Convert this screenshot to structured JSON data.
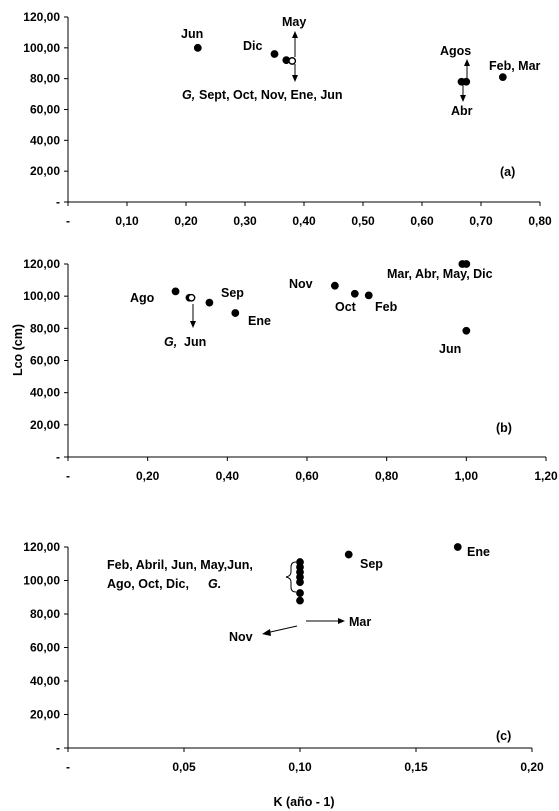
{
  "y_title": "Lco (cm)",
  "x_title": "K (año - 1)",
  "chart_data": [
    {
      "type": "scatter",
      "panel_label": "(a)",
      "xlim": [
        0,
        0.8
      ],
      "ylim": [
        0,
        120
      ],
      "x_ticks": [
        0.0,
        0.1,
        0.2,
        0.3,
        0.4,
        0.5,
        0.6,
        0.7,
        0.8
      ],
      "x_tick_labels": [
        "-",
        "0,10",
        "0,20",
        "0,30",
        "0,40",
        "0,50",
        "0,60",
        "0,70",
        "0,80"
      ],
      "y_ticks": [
        0,
        20,
        40,
        60,
        80,
        100,
        120
      ],
      "y_tick_labels": [
        "-",
        "20,00",
        "40,00",
        "60,00",
        "80,00",
        "100,00",
        "120,00"
      ],
      "grid": false,
      "points": [
        {
          "x": 0.22,
          "y": 100.0
        },
        {
          "x": 0.35,
          "y": 96.0
        },
        {
          "x": 0.37,
          "y": 92.0
        },
        {
          "x": 0.38,
          "y": 91.5,
          "hollow": true
        },
        {
          "x": 0.667,
          "y": 78.0
        },
        {
          "x": 0.675,
          "y": 78.0
        },
        {
          "x": 0.737,
          "y": 81.0
        }
      ],
      "annotations": [
        "Jun",
        "Dic",
        "May",
        "G,",
        "Sept, Oct, Nov, Ene, Jun",
        "Agos",
        "Abr",
        "Feb, Mar"
      ]
    },
    {
      "type": "scatter",
      "panel_label": "(b)",
      "xlim": [
        0,
        1.2
      ],
      "ylim": [
        0,
        120
      ],
      "x_ticks": [
        0.0,
        0.2,
        0.4,
        0.6,
        0.8,
        1.0,
        1.2
      ],
      "x_tick_labels": [
        "-",
        "0,20",
        "0,40",
        "0,60",
        "0,80",
        "1,00",
        "1,20"
      ],
      "y_ticks": [
        0,
        20,
        40,
        60,
        80,
        100,
        120
      ],
      "y_tick_labels": [
        "-",
        "20,00",
        "40,00",
        "60,00",
        "80,00",
        "100,00",
        "120,00"
      ],
      "grid": false,
      "points": [
        {
          "x": 0.27,
          "y": 103.0
        },
        {
          "x": 0.305,
          "y": 99.0
        },
        {
          "x": 0.31,
          "y": 99.0,
          "hollow": true
        },
        {
          "x": 0.355,
          "y": 96.0
        },
        {
          "x": 0.42,
          "y": 89.5
        },
        {
          "x": 0.67,
          "y": 106.5
        },
        {
          "x": 0.72,
          "y": 101.5
        },
        {
          "x": 0.755,
          "y": 100.5
        },
        {
          "x": 0.99,
          "y": 120.0
        },
        {
          "x": 1.0,
          "y": 120.0
        },
        {
          "x": 1.0,
          "y": 78.5
        }
      ],
      "annotations": [
        "Ago",
        "Sep",
        "G,",
        "Jun",
        "Ene",
        "Nov",
        "Oct",
        "Feb",
        "Mar, Abr, May, Dic",
        "Jun"
      ]
    },
    {
      "type": "scatter",
      "panel_label": "(c)",
      "xlim": [
        0,
        0.2
      ],
      "ylim": [
        0,
        120
      ],
      "x_ticks": [
        0.0,
        0.05,
        0.1,
        0.15,
        0.2
      ],
      "x_tick_labels": [
        "-",
        "0,05",
        "0,10",
        "0,15",
        "0,20"
      ],
      "y_ticks": [
        0,
        20,
        40,
        60,
        80,
        100,
        120
      ],
      "y_tick_labels": [
        "-",
        "20,00",
        "40,00",
        "60,00",
        "80,00",
        "100,00",
        "120,00"
      ],
      "grid": false,
      "points": [
        {
          "x": 0.1,
          "y": 111.0
        },
        {
          "x": 0.1,
          "y": 108.0
        },
        {
          "x": 0.1,
          "y": 105.0
        },
        {
          "x": 0.1,
          "y": 102.0
        },
        {
          "x": 0.1,
          "y": 99.0
        },
        {
          "x": 0.1,
          "y": 92.5
        },
        {
          "x": 0.1,
          "y": 88.0
        },
        {
          "x": 0.121,
          "y": 115.5
        },
        {
          "x": 0.168,
          "y": 120.0
        }
      ],
      "annotations": [
        "Feb, Abril, Jun, May,Jun,",
        "Ago, Oct, Dic,",
        "G.",
        "Nov",
        "Mar",
        "Sep",
        "Ene"
      ]
    }
  ]
}
